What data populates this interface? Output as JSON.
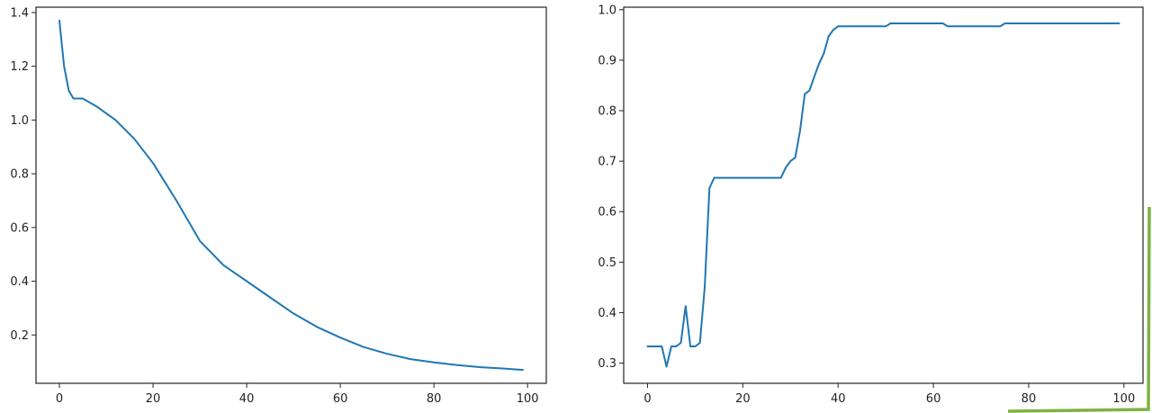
{
  "colors": {
    "series": "#1f77b4",
    "axes": "#222222",
    "accent_border": "#7cb342"
  },
  "chart_data": [
    {
      "type": "line",
      "title": "",
      "xlabel": "",
      "ylabel": "",
      "xlim": [
        -5,
        104
      ],
      "ylim": [
        0.02,
        1.42
      ],
      "grid": false,
      "xticks": [
        0,
        20,
        40,
        60,
        80,
        100
      ],
      "xtick_labels": [
        "0",
        "20",
        "40",
        "60",
        "80",
        "100"
      ],
      "yticks": [
        0.2,
        0.4,
        0.6,
        0.8,
        1.0,
        1.2,
        1.4
      ],
      "ytick_labels": [
        "0.2",
        "0.4",
        "0.6",
        "0.8",
        "1.0",
        "1.2",
        "1.4"
      ],
      "series": [
        {
          "x": [
            0,
            1,
            2,
            3,
            5,
            8,
            12,
            16,
            20,
            25,
            30,
            35,
            40,
            45,
            50,
            55,
            60,
            65,
            70,
            75,
            80,
            85,
            90,
            95,
            99
          ],
          "y": [
            1.37,
            1.2,
            1.11,
            1.08,
            1.08,
            1.05,
            1.0,
            0.93,
            0.84,
            0.7,
            0.55,
            0.46,
            0.4,
            0.34,
            0.28,
            0.23,
            0.19,
            0.155,
            0.13,
            0.11,
            0.098,
            0.088,
            0.08,
            0.075,
            0.07
          ]
        }
      ]
    },
    {
      "type": "line",
      "title": "",
      "xlabel": "",
      "ylabel": "",
      "xlim": [
        -5,
        104
      ],
      "ylim": [
        0.26,
        1.005
      ],
      "grid": false,
      "xticks": [
        0,
        20,
        40,
        60,
        80,
        100
      ],
      "xtick_labels": [
        "0",
        "20",
        "40",
        "60",
        "80",
        "100"
      ],
      "yticks": [
        0.3,
        0.4,
        0.5,
        0.6,
        0.7,
        0.8,
        0.9,
        1.0
      ],
      "ytick_labels": [
        "0.3",
        "0.4",
        "0.5",
        "0.6",
        "0.7",
        "0.8",
        "0.9",
        "1.0"
      ],
      "series": [
        {
          "x": [
            0,
            1,
            2,
            3,
            4,
            5,
            6,
            7,
            8,
            9,
            10,
            11,
            12,
            13,
            14,
            20,
            28,
            29,
            30,
            31,
            32,
            33,
            34,
            35,
            36,
            37,
            38,
            39,
            40,
            45,
            50,
            51,
            55,
            62,
            63,
            70,
            74,
            75,
            80,
            90,
            99
          ],
          "y": [
            0.333,
            0.333,
            0.333,
            0.333,
            0.293,
            0.333,
            0.333,
            0.34,
            0.413,
            0.333,
            0.333,
            0.34,
            0.45,
            0.647,
            0.667,
            0.667,
            0.667,
            0.687,
            0.7,
            0.707,
            0.76,
            0.833,
            0.84,
            0.867,
            0.893,
            0.913,
            0.947,
            0.96,
            0.967,
            0.967,
            0.967,
            0.973,
            0.973,
            0.973,
            0.967,
            0.967,
            0.967,
            0.973,
            0.973,
            0.973,
            0.973
          ]
        }
      ]
    }
  ]
}
